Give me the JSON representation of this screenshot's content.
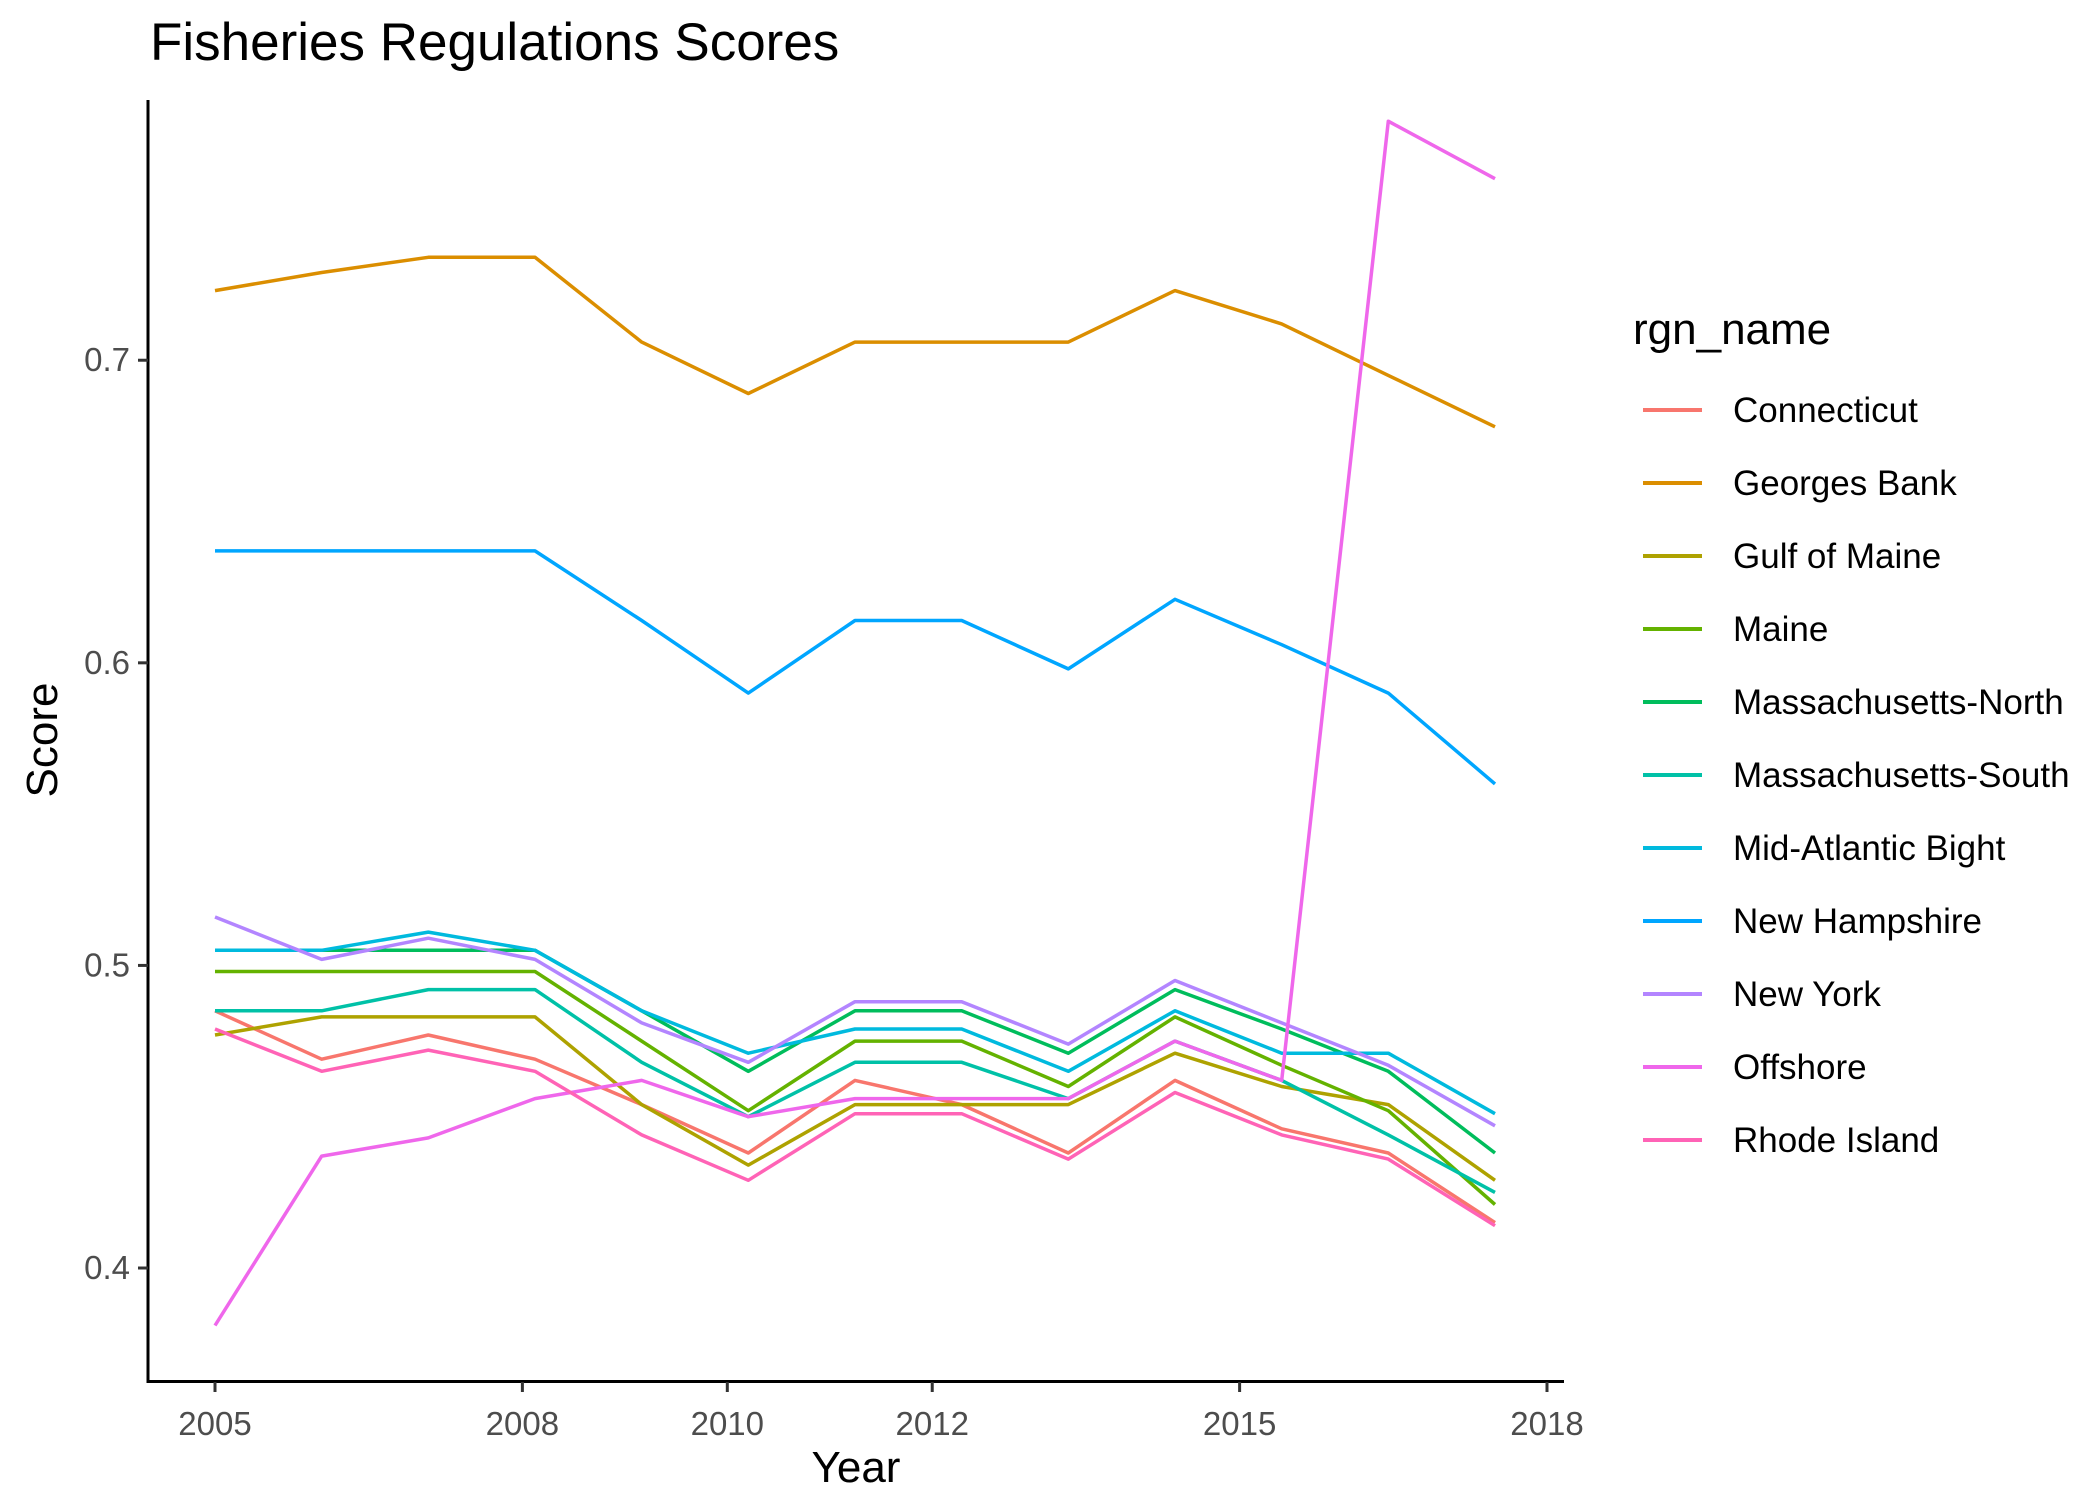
{
  "chart_data": {
    "type": "line",
    "title": "Fisheries Regulations Scores",
    "xlabel": "Year",
    "ylabel": "Score",
    "legend_title": "rgn_name",
    "legend_position": "right",
    "grid": false,
    "x": [
      2005,
      2006,
      2007,
      2008,
      2009,
      2010,
      2011,
      2012,
      2013,
      2014,
      2015,
      2016,
      2017
    ],
    "xlim": [
      2004.6,
      2017.7
    ],
    "ylim": [
      0.362,
      0.786
    ],
    "x_ticks": [
      2005,
      2008,
      2010,
      2012,
      2015,
      2018
    ],
    "x_tick_labels": [
      "2005",
      "2008",
      "2010",
      "2012",
      "2015",
      "2018"
    ],
    "y_ticks": [
      0.4,
      0.5,
      0.6,
      0.7
    ],
    "y_tick_labels": [
      "0.4",
      "0.5",
      "0.6",
      "0.7"
    ],
    "series": [
      {
        "name": "Connecticut",
        "color": "#F8766D",
        "values": [
          0.485,
          0.469,
          0.477,
          0.469,
          0.454,
          0.438,
          0.462,
          0.454,
          0.438,
          0.462,
          0.446,
          0.438,
          0.415
        ]
      },
      {
        "name": "Georges Bank",
        "color": "#DB8E00",
        "values": [
          0.723,
          0.729,
          0.734,
          0.734,
          0.706,
          0.689,
          0.706,
          0.706,
          0.706,
          0.723,
          0.712,
          0.695,
          0.678
        ]
      },
      {
        "name": "Gulf of Maine",
        "color": "#AEA200",
        "values": [
          0.477,
          0.483,
          0.483,
          0.483,
          0.454,
          0.434,
          0.454,
          0.454,
          0.454,
          0.471,
          0.46,
          0.454,
          0.429
        ]
      },
      {
        "name": "Maine",
        "color": "#64B200",
        "values": [
          0.498,
          0.498,
          0.498,
          0.498,
          0.475,
          0.452,
          0.475,
          0.475,
          0.46,
          0.483,
          0.467,
          0.452,
          0.421
        ]
      },
      {
        "name": "Massachusetts-North",
        "color": "#00BD5C",
        "values": [
          0.505,
          0.505,
          0.505,
          0.505,
          0.485,
          0.465,
          0.485,
          0.485,
          0.471,
          0.492,
          0.479,
          0.465,
          0.438
        ]
      },
      {
        "name": "Massachusetts-South",
        "color": "#00C1A7",
        "values": [
          0.485,
          0.485,
          0.492,
          0.492,
          0.468,
          0.45,
          0.468,
          0.468,
          0.456,
          0.475,
          0.462,
          0.444,
          0.425
        ]
      },
      {
        "name": "Mid-Atlantic Bight",
        "color": "#00BADE",
        "values": [
          0.505,
          0.505,
          0.511,
          0.505,
          0.485,
          0.471,
          0.479,
          0.479,
          0.465,
          0.485,
          0.471,
          0.471,
          0.451
        ]
      },
      {
        "name": "New Hampshire",
        "color": "#00A6FF",
        "values": [
          0.637,
          0.637,
          0.637,
          0.637,
          0.614,
          0.59,
          0.614,
          0.614,
          0.598,
          0.621,
          0.606,
          0.59,
          0.56
        ]
      },
      {
        "name": "New York",
        "color": "#B385FF",
        "values": [
          0.516,
          0.502,
          0.509,
          0.502,
          0.481,
          0.468,
          0.488,
          0.488,
          0.474,
          0.495,
          0.481,
          0.467,
          0.447
        ]
      },
      {
        "name": "Offshore",
        "color": "#EF67EB",
        "values": [
          0.381,
          0.437,
          0.443,
          0.456,
          0.462,
          0.45,
          0.456,
          0.456,
          0.456,
          0.475,
          0.462,
          0.779,
          0.76
        ]
      },
      {
        "name": "Rhode Island",
        "color": "#FF63B6",
        "values": [
          0.479,
          0.465,
          0.472,
          0.465,
          0.444,
          0.429,
          0.451,
          0.451,
          0.436,
          0.458,
          0.444,
          0.436,
          0.414
        ]
      }
    ]
  }
}
